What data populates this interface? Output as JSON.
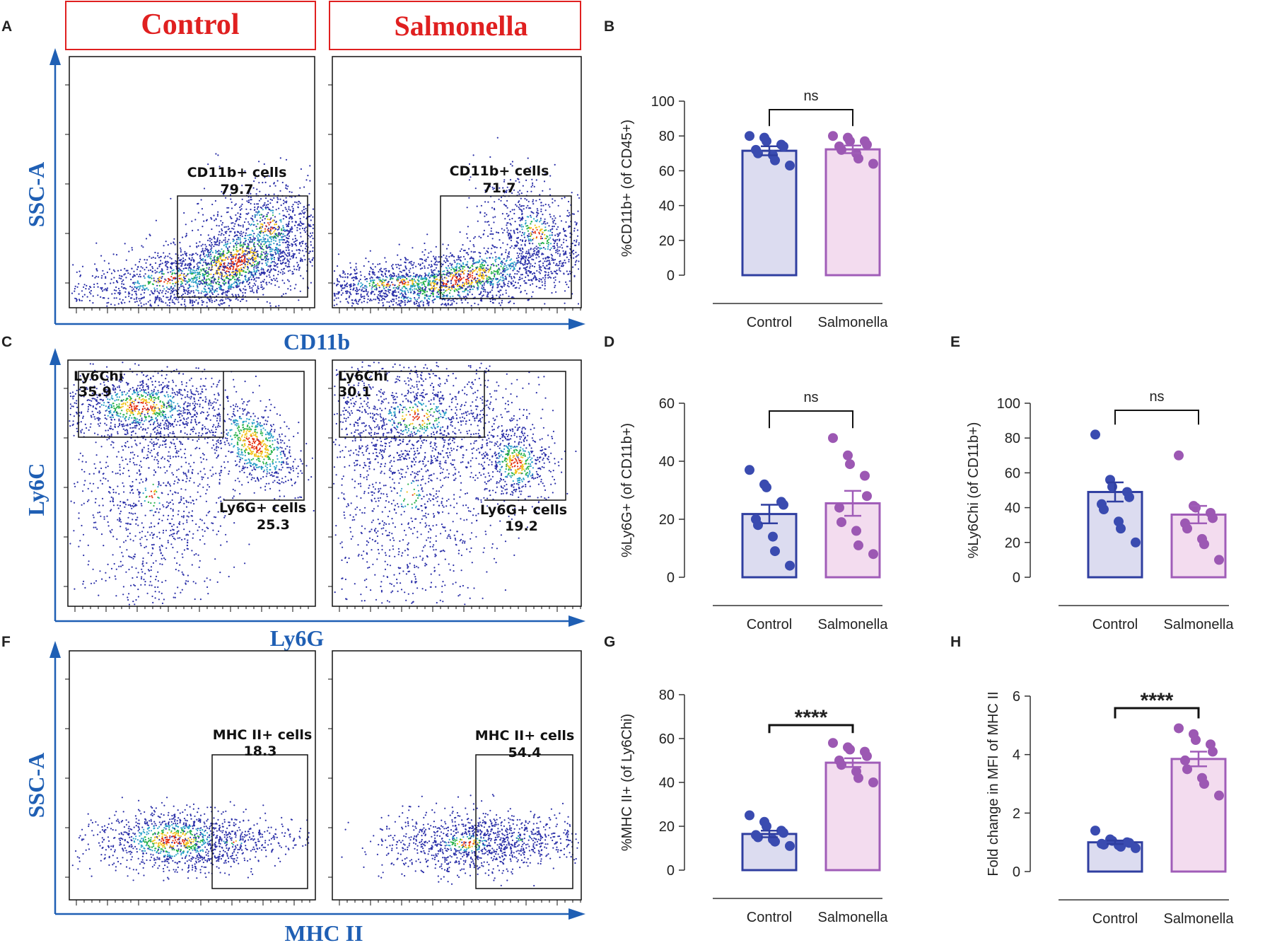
{
  "figure": {
    "colors": {
      "axis_blue": "#1f5fb4",
      "header_red": "#e02020",
      "control_dark": "#2f3ea0",
      "control_dot": "#3a4bb0",
      "control_fill": "#dcdcf0",
      "salmonella_dark": "#a05db8",
      "salmonella_dot": "#9c58b3",
      "salmonella_fill": "#f3dcef"
    },
    "panel_letters": [
      "A",
      "B",
      "C",
      "D",
      "E",
      "F",
      "G",
      "H"
    ],
    "headers": {
      "control": "Control",
      "salmonella": "Salmonella"
    },
    "rows": [
      {
        "id": "A",
        "y_label": "SSC-A",
        "x_label": "CD11b",
        "gate_control": {
          "label": "CD11b+ cells",
          "value": "79.7"
        },
        "gate_salmonella": {
          "label": "CD11b+ cells",
          "value": "71.7"
        }
      },
      {
        "id": "C",
        "y_label": "Ly6C",
        "x_label": "Ly6G",
        "ly6c_control": {
          "label": "Ly6Chi",
          "value": "35.9"
        },
        "ly6g_control": {
          "label": "Ly6G+ cells",
          "value": "25.3"
        },
        "ly6c_salmonella": {
          "label": "Ly6Chi",
          "value": "30.1"
        },
        "ly6g_salmonella": {
          "label": "Ly6G+ cells",
          "value": "19.2"
        }
      },
      {
        "id": "F",
        "y_label": "SSC-A",
        "x_label": "MHC II",
        "gate_control": {
          "label": "MHC II+ cells",
          "value": "18.3"
        },
        "gate_salmonella": {
          "label": "MHC II+ cells",
          "value": "54.4"
        }
      }
    ]
  },
  "chart_data": [
    {
      "panel": "B",
      "type": "bar",
      "categories": [
        "Control",
        "Salmonella"
      ],
      "ylabel": "%CD11b+ (of CD45+)",
      "ylim": [
        0,
        100
      ],
      "yticks": [
        0,
        20,
        40,
        60,
        80,
        100
      ],
      "significance": "ns",
      "values": [
        71.5,
        72.3
      ],
      "sem": [
        2.6,
        2.2
      ],
      "points": [
        [
          80,
          79,
          77,
          75,
          74,
          72,
          70,
          69,
          66,
          63
        ],
        [
          80,
          79,
          77,
          77,
          75,
          74,
          72,
          70,
          67,
          64
        ]
      ]
    },
    {
      "panel": "D",
      "type": "bar",
      "categories": [
        "Control",
        "Salmonella"
      ],
      "ylabel": "%Ly6G+ (of CD11b+)",
      "ylim": [
        0,
        60
      ],
      "yticks": [
        0,
        20,
        40,
        60
      ],
      "significance": "ns",
      "values": [
        21.8,
        25.5
      ],
      "sem": [
        3.2,
        4.3
      ],
      "points": [
        [
          37,
          32,
          31,
          26,
          25,
          20,
          18,
          14,
          9,
          4
        ],
        [
          48,
          42,
          39,
          35,
          28,
          24,
          19,
          16,
          11,
          8
        ]
      ]
    },
    {
      "panel": "E",
      "type": "bar",
      "categories": [
        "Control",
        "Salmonella"
      ],
      "ylabel": "%Ly6Chi (of CD11b+)",
      "ylim": [
        0,
        100
      ],
      "yticks": [
        0,
        20,
        40,
        60,
        80,
        100
      ],
      "significance": "ns",
      "values": [
        49,
        36
      ],
      "sem": [
        5.5,
        5.0
      ],
      "points": [
        [
          82,
          56,
          52,
          49,
          46,
          42,
          39,
          32,
          28,
          20
        ],
        [
          70,
          41,
          40,
          37,
          34,
          31,
          28,
          22,
          19,
          10
        ]
      ]
    },
    {
      "panel": "G",
      "type": "bar",
      "categories": [
        "Control",
        "Salmonella"
      ],
      "ylabel": "%MHC II+ (of Ly6Chi)",
      "ylim": [
        0,
        80
      ],
      "yticks": [
        0,
        20,
        40,
        60,
        80
      ],
      "significance": "****",
      "values": [
        16.5,
        49
      ],
      "sem": [
        1.5,
        2.0
      ],
      "points": [
        [
          25,
          22,
          20,
          18,
          17,
          16,
          15,
          14,
          13,
          11
        ],
        [
          58,
          56,
          55,
          54,
          52,
          50,
          48,
          45,
          42,
          40
        ]
      ]
    },
    {
      "panel": "H",
      "type": "bar",
      "categories": [
        "Control",
        "Salmonella"
      ],
      "ylabel": "Fold change in MFI of MHC II",
      "ylim": [
        0,
        6
      ],
      "yticks": [
        0,
        2,
        4,
        6
      ],
      "significance": "****",
      "values": [
        1.0,
        3.85
      ],
      "sem": [
        0.06,
        0.25
      ],
      "points": [
        [
          1.4,
          1.1,
          1.05,
          1.0,
          0.98,
          0.95,
          0.92,
          0.9,
          0.85,
          0.8
        ],
        [
          4.9,
          4.7,
          4.5,
          4.35,
          4.1,
          3.8,
          3.5,
          3.2,
          3.0,
          2.6
        ]
      ]
    }
  ]
}
